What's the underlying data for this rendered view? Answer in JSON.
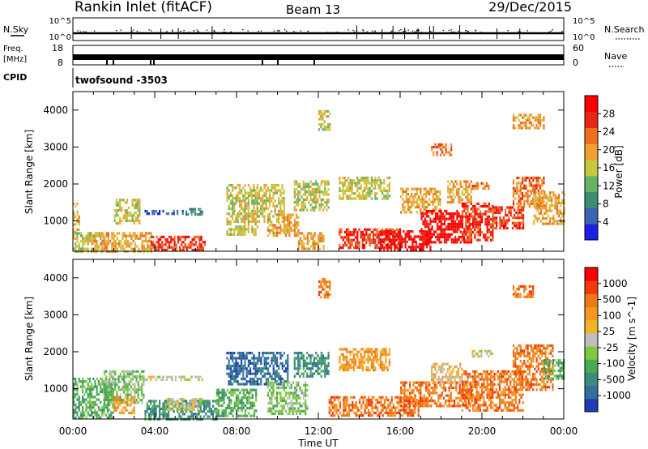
{
  "header": {
    "station": "Rankin Inlet (fitACF)",
    "beam": "Beam 13",
    "date": "29/Dec/2015"
  },
  "top_panels": {
    "nsky_label": "N.Sky",
    "nsky_ticks": [
      "10^5",
      "10^0"
    ],
    "nsearch_label": "N.Search",
    "nsearch_ticks": [
      "10^5",
      "10^0"
    ],
    "freq_label": "Freq.",
    "freq_unit": "[MHz]",
    "freq_ticks": [
      "18",
      "8"
    ],
    "nave_label": "Nave",
    "nave_ticks": [
      "60",
      "0"
    ],
    "cpid_label": "CPID",
    "cpid_value": "twofsound -3503"
  },
  "colors": {
    "power_scale": [
      "#1e1ee6",
      "#3c64b4",
      "#3c8c6e",
      "#64b464",
      "#c8c83c",
      "#f0a030",
      "#f06e1e",
      "#e62814",
      "#ff0000"
    ],
    "velocity_scale": [
      "#1e3cb4",
      "#326ea0",
      "#3c8c78",
      "#46aa50",
      "#82c83c",
      "#bebebe",
      "#f0b428",
      "#f5961e",
      "#f07814",
      "#f03c0a",
      "#ff0000"
    ]
  },
  "chart_data": [
    {
      "type": "heatmap",
      "title": "",
      "xlabel": "",
      "ylabel": "Slant Range [km]",
      "x_ticks": [
        "00:00",
        "04:00",
        "08:00",
        "12:00",
        "16:00",
        "20:00",
        "00:00"
      ],
      "xlim_hours": [
        0,
        24
      ],
      "ylim_km": [
        180,
        4500
      ],
      "y_ticks": [
        1000,
        2000,
        3000,
        4000
      ],
      "colorbar": {
        "label": "Power [dB]",
        "ticks": [
          "28",
          "24",
          "20",
          "16",
          "12",
          "8",
          "4"
        ]
      },
      "patches": [
        {
          "t0": 0.0,
          "t1": 0.3,
          "r0": 700,
          "r1": 1500,
          "level": 5
        },
        {
          "t0": 0.0,
          "t1": 1.5,
          "r0": 180,
          "r1": 700,
          "level": 4
        },
        {
          "t0": 1.0,
          "t1": 3.8,
          "r0": 180,
          "r1": 700,
          "level": 5
        },
        {
          "t0": 3.8,
          "t1": 6.5,
          "r0": 180,
          "r1": 600,
          "level": 7
        },
        {
          "t0": 2.0,
          "t1": 3.3,
          "r0": 900,
          "r1": 1600,
          "level": 4
        },
        {
          "t0": 3.5,
          "t1": 5.5,
          "r0": 1200,
          "r1": 1300,
          "level": 1
        },
        {
          "t0": 5.5,
          "t1": 6.3,
          "r0": 1200,
          "r1": 1350,
          "level": 2
        },
        {
          "t0": 7.5,
          "t1": 9.0,
          "r0": 600,
          "r1": 2000,
          "level": 4
        },
        {
          "t0": 8.8,
          "t1": 10.3,
          "r0": 1000,
          "r1": 2000,
          "level": 4
        },
        {
          "t0": 9.5,
          "t1": 11.0,
          "r0": 600,
          "r1": 1200,
          "level": 5
        },
        {
          "t0": 10.8,
          "t1": 12.5,
          "r0": 1300,
          "r1": 2100,
          "level": 4
        },
        {
          "t0": 11.0,
          "t1": 12.3,
          "r0": 250,
          "r1": 700,
          "level": 5
        },
        {
          "t0": 12.0,
          "t1": 12.6,
          "r0": 3500,
          "r1": 4000,
          "level": 4
        },
        {
          "t0": 13.0,
          "t1": 15.5,
          "r0": 1600,
          "r1": 2200,
          "level": 4
        },
        {
          "t0": 13.0,
          "t1": 16.0,
          "r0": 250,
          "r1": 800,
          "level": 7
        },
        {
          "t0": 15.0,
          "t1": 17.5,
          "r0": 250,
          "r1": 750,
          "level": 8
        },
        {
          "t0": 16.0,
          "t1": 18.0,
          "r0": 1200,
          "r1": 1900,
          "level": 5
        },
        {
          "t0": 17.0,
          "t1": 19.5,
          "r0": 400,
          "r1": 1300,
          "level": 8
        },
        {
          "t0": 19.0,
          "t1": 20.5,
          "r0": 500,
          "r1": 1500,
          "level": 7
        },
        {
          "t0": 18.3,
          "t1": 19.5,
          "r0": 1500,
          "r1": 2100,
          "level": 5
        },
        {
          "t0": 19.5,
          "t1": 20.3,
          "r0": 1900,
          "r1": 2050,
          "level": 6
        },
        {
          "t0": 20.5,
          "t1": 22.0,
          "r0": 800,
          "r1": 1400,
          "level": 7
        },
        {
          "t0": 21.5,
          "t1": 23.0,
          "r0": 1400,
          "r1": 2200,
          "level": 6
        },
        {
          "t0": 22.5,
          "t1": 24.0,
          "r0": 900,
          "r1": 1800,
          "level": 5
        },
        {
          "t0": 21.5,
          "t1": 23.0,
          "r0": 3500,
          "r1": 3900,
          "level": 5
        },
        {
          "t0": 17.5,
          "t1": 18.5,
          "r0": 2800,
          "r1": 3100,
          "level": 6
        }
      ]
    },
    {
      "type": "heatmap",
      "title": "",
      "xlabel": "Time UT",
      "ylabel": "Slant Range [km]",
      "x_ticks": [
        "00:00",
        "04:00",
        "08:00",
        "12:00",
        "16:00",
        "20:00",
        "00:00"
      ],
      "xlim_hours": [
        0,
        24
      ],
      "ylim_km": [
        180,
        4500
      ],
      "y_ticks": [
        1000,
        2000,
        3000,
        4000
      ],
      "colorbar": {
        "label": "Velocity [m s^-1]",
        "ticks": [
          "1000",
          "500",
          "100",
          "25",
          "-25",
          "-100",
          "-500",
          "-1000"
        ]
      },
      "patches": [
        {
          "t0": 0.0,
          "t1": 2.0,
          "r0": 200,
          "r1": 1300,
          "level": 3
        },
        {
          "t0": 1.5,
          "t1": 3.5,
          "r0": 600,
          "r1": 1500,
          "level": 4
        },
        {
          "t0": 2.0,
          "t1": 3.0,
          "r0": 350,
          "r1": 800,
          "level": 7
        },
        {
          "t0": 3.5,
          "t1": 7.0,
          "r0": 200,
          "r1": 700,
          "level": 2
        },
        {
          "t0": 4.5,
          "t1": 6.3,
          "r0": 400,
          "r1": 750,
          "level": 5
        },
        {
          "t0": 3.5,
          "t1": 6.3,
          "r0": 1250,
          "r1": 1350,
          "level": 5
        },
        {
          "t0": 7.5,
          "t1": 10.5,
          "r0": 1100,
          "r1": 2000,
          "level": 1
        },
        {
          "t0": 7.0,
          "t1": 9.0,
          "r0": 250,
          "r1": 1000,
          "level": 3
        },
        {
          "t0": 9.5,
          "t1": 11.5,
          "r0": 350,
          "r1": 1200,
          "level": 4
        },
        {
          "t0": 10.8,
          "t1": 12.5,
          "r0": 1300,
          "r1": 2000,
          "level": 2
        },
        {
          "t0": 12.0,
          "t1": 12.6,
          "r0": 3500,
          "r1": 4000,
          "level": 8
        },
        {
          "t0": 13.0,
          "t1": 15.5,
          "r0": 1500,
          "r1": 2100,
          "level": 7
        },
        {
          "t0": 12.5,
          "t1": 17.0,
          "r0": 250,
          "r1": 800,
          "level": 8
        },
        {
          "t0": 16.0,
          "t1": 19.5,
          "r0": 500,
          "r1": 1200,
          "level": 8
        },
        {
          "t0": 17.5,
          "t1": 19.0,
          "r0": 1200,
          "r1": 1700,
          "level": 6
        },
        {
          "t0": 19.0,
          "t1": 22.0,
          "r0": 400,
          "r1": 1500,
          "level": 8
        },
        {
          "t0": 19.5,
          "t1": 20.5,
          "r0": 1900,
          "r1": 2050,
          "level": 5
        },
        {
          "t0": 21.5,
          "t1": 23.5,
          "r0": 1000,
          "r1": 2200,
          "level": 8
        },
        {
          "t0": 23.0,
          "t1": 24.0,
          "r0": 1300,
          "r1": 1800,
          "level": 3
        },
        {
          "t0": 21.5,
          "t1": 22.5,
          "r0": 3500,
          "r1": 3800,
          "level": 8
        }
      ]
    }
  ]
}
